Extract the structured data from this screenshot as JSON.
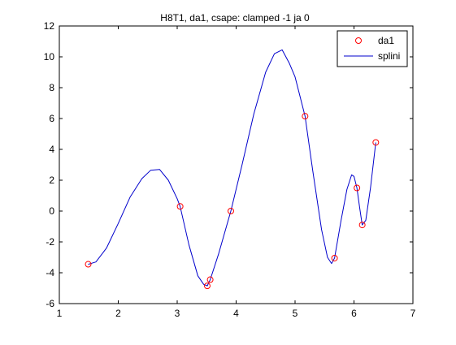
{
  "window": {
    "background": "#ffffff"
  },
  "chart_data": {
    "type": "line",
    "title": "H8T1, da1, csape: clamped -1 ja 0",
    "xlabel": "",
    "ylabel": "",
    "xlim": [
      1,
      7
    ],
    "ylim": [
      -6,
      12
    ],
    "xticks": [
      1,
      2,
      3,
      4,
      5,
      6,
      7
    ],
    "yticks": [
      -6,
      -4,
      -2,
      0,
      2,
      4,
      6,
      8,
      10,
      12
    ],
    "grid": false,
    "legend": {
      "location": "top-right",
      "entries": [
        "da1",
        "splini"
      ]
    },
    "series": [
      {
        "name": "da1",
        "kind": "markers",
        "marker": "circle",
        "color": "#ff0000",
        "x": [
          1.49,
          3.05,
          3.51,
          3.56,
          3.91,
          5.17,
          5.67,
          6.05,
          6.14,
          6.37
        ],
        "y": [
          -3.45,
          0.3,
          -4.85,
          -4.45,
          0.0,
          6.15,
          -3.05,
          1.5,
          -0.9,
          4.45
        ]
      },
      {
        "name": "splini",
        "kind": "line",
        "color": "#0000cc",
        "x": [
          1.49,
          1.62,
          1.8,
          2.0,
          2.2,
          2.4,
          2.55,
          2.7,
          2.85,
          3.0,
          3.05,
          3.2,
          3.35,
          3.45,
          3.51,
          3.56,
          3.7,
          3.91,
          4.1,
          4.3,
          4.5,
          4.65,
          4.78,
          4.9,
          5.0,
          5.17,
          5.3,
          5.45,
          5.55,
          5.62,
          5.67,
          5.78,
          5.88,
          5.96,
          6.0,
          6.05,
          6.1,
          6.14,
          6.2,
          6.28,
          6.37
        ],
        "y": [
          -3.45,
          -3.3,
          -2.4,
          -0.8,
          0.9,
          2.1,
          2.65,
          2.7,
          2.0,
          0.8,
          0.3,
          -2.2,
          -4.2,
          -4.75,
          -4.85,
          -4.45,
          -2.8,
          0.0,
          3.0,
          6.3,
          9.0,
          10.2,
          10.45,
          9.6,
          8.7,
          6.15,
          2.6,
          -1.2,
          -3.0,
          -3.4,
          -3.05,
          -0.6,
          1.4,
          2.35,
          2.25,
          1.5,
          0.1,
          -0.9,
          -0.6,
          1.5,
          4.45
        ]
      }
    ]
  }
}
